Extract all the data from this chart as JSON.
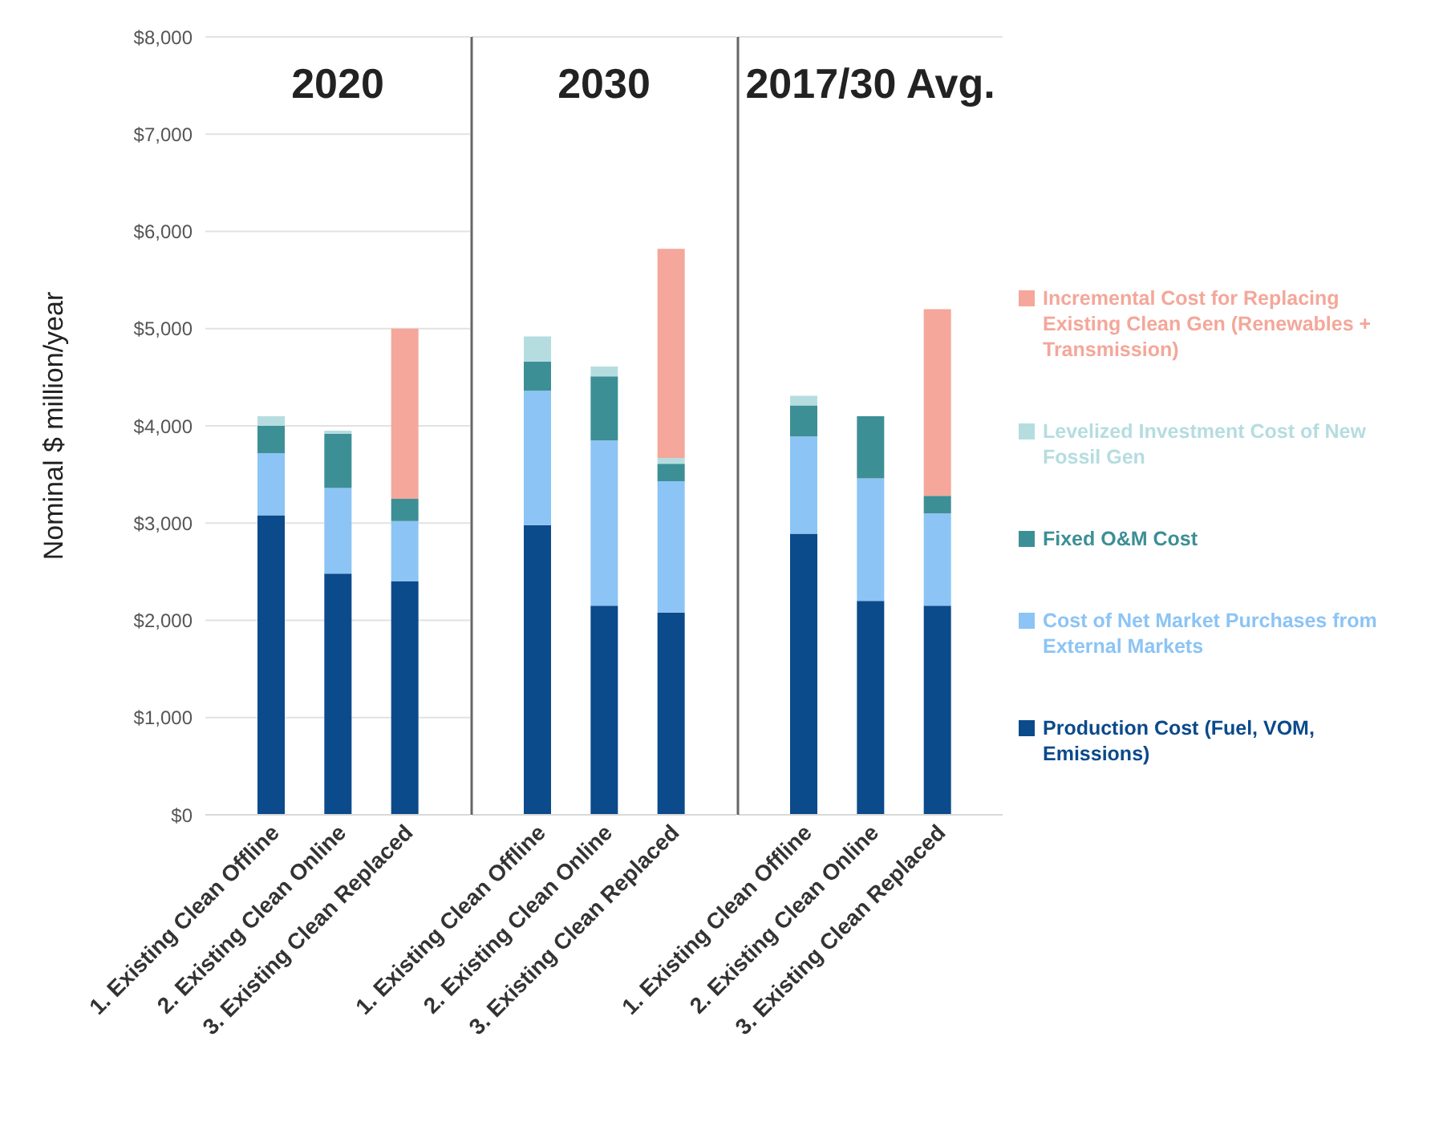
{
  "chart_data": [
    {
      "type": "bar",
      "stacked": true,
      "title": "2020",
      "ylabel": "Nominal $ million/year",
      "categories": [
        "1. Existing Clean Offline",
        "2. Existing Clean Online",
        "3. Existing Clean Replaced"
      ],
      "series": [
        {
          "color": "#0b4a8b",
          "values": [
            3080,
            2480,
            2400
          ]
        },
        {
          "color": "#8cc4f5",
          "values": [
            640,
            880,
            620
          ]
        },
        {
          "color": "#3d8f96",
          "values": [
            280,
            560,
            230
          ]
        },
        {
          "color": "#b5dde0",
          "values": [
            100,
            30,
            0
          ]
        },
        {
          "color": "#f4a79a",
          "values": [
            0,
            0,
            1750
          ]
        }
      ],
      "ylim": [
        0,
        8000
      ],
      "yticks": [
        {
          "value": 0,
          "label": "$0"
        },
        {
          "value": 1000,
          "label": "$1,000"
        },
        {
          "value": 2000,
          "label": "$2,000"
        },
        {
          "value": 3000,
          "label": "$3,000"
        },
        {
          "value": 4000,
          "label": "$4,000"
        },
        {
          "value": 5000,
          "label": "$5,000"
        },
        {
          "value": 6000,
          "label": "$6,000"
        },
        {
          "value": 7000,
          "label": "$7,000"
        },
        {
          "value": 8000,
          "label": "$8,000"
        }
      ],
      "grid": "y"
    },
    {
      "type": "bar",
      "stacked": true,
      "title": "2030",
      "categories": [
        "1. Existing Clean Offline",
        "2. Existing Clean Online",
        "3. Existing Clean Replaced"
      ],
      "series": [
        {
          "color": "#0b4a8b",
          "values": [
            2980,
            2150,
            2080
          ]
        },
        {
          "color": "#8cc4f5",
          "values": [
            1380,
            1700,
            1350
          ]
        },
        {
          "color": "#3d8f96",
          "values": [
            300,
            660,
            180
          ]
        },
        {
          "color": "#b5dde0",
          "values": [
            260,
            100,
            60
          ]
        },
        {
          "color": "#f4a79a",
          "values": [
            0,
            0,
            2150
          ]
        }
      ],
      "ylim": [
        0,
        8000
      ],
      "tick_labels": "x",
      "grid": "y"
    },
    {
      "type": "bar",
      "stacked": true,
      "title": "2017/30 Avg.",
      "categories": [
        "1. Existing Clean Offline",
        "2. Existing Clean Online",
        "3. Existing Clean Replaced"
      ],
      "series": [
        {
          "name": "Production Cost (Fuel, VOM, Emissions)",
          "color": "#0b4a8b",
          "values": [
            2890,
            2200,
            2150
          ]
        },
        {
          "name": "Cost of Net Market Purchases from External Markets",
          "color": "#8cc4f5",
          "values": [
            1000,
            1260,
            950
          ]
        },
        {
          "name": "Fixed O&M Cost",
          "color": "#3d8f96",
          "values": [
            320,
            640,
            180
          ]
        },
        {
          "name": "Levelized Investment Cost of New Fossil Gen",
          "color": "#b5dde0",
          "values": [
            100,
            0,
            0
          ]
        },
        {
          "name": "Incremental Cost for Replacing Existing Clean Gen (Renewables + Transmission)",
          "color": "#f4a79a",
          "values": [
            0,
            0,
            1920
          ]
        }
      ],
      "ylim": [
        0,
        8000
      ],
      "tick_labels": "x",
      "grid": "y",
      "legend": "right"
    }
  ]
}
